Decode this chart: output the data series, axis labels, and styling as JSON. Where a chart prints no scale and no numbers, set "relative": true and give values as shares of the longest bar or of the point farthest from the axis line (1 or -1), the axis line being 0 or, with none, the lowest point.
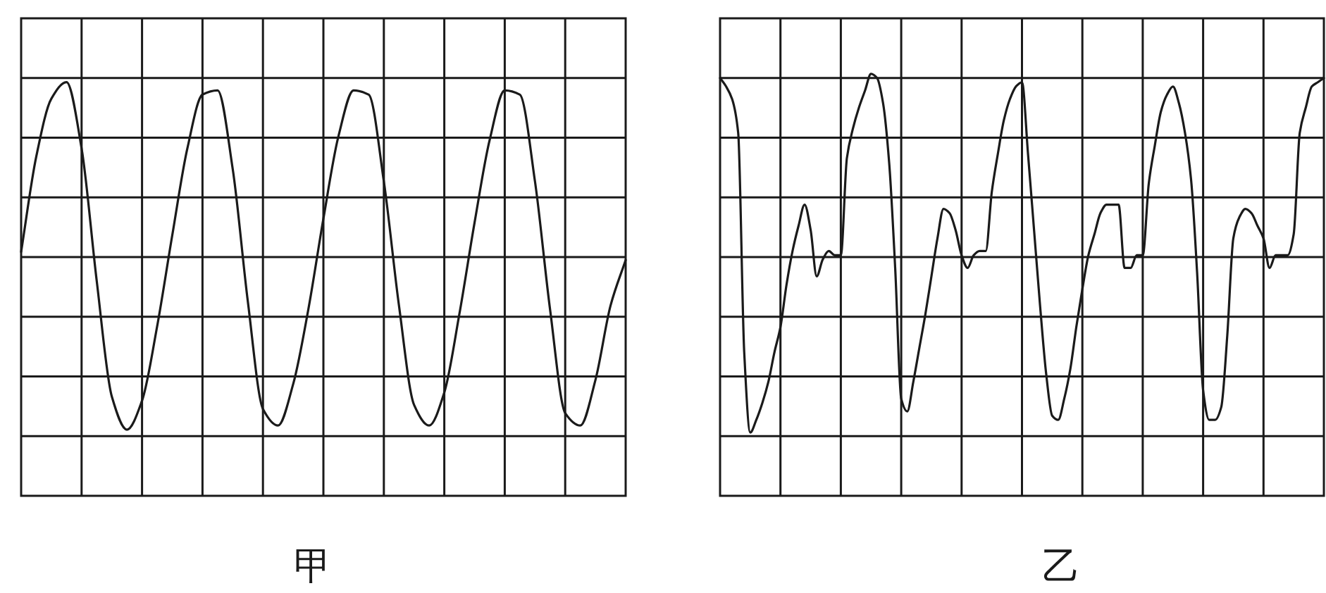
{
  "chart_data": [
    {
      "type": "line",
      "relative": true,
      "grid": true,
      "xlabel": "甲",
      "categories": [
        null,
        null,
        null,
        null,
        null,
        null,
        null,
        null,
        null,
        null,
        null,
        null,
        null,
        null,
        null,
        null,
        null,
        null,
        null,
        null,
        null,
        null,
        null,
        null,
        null,
        null,
        null,
        null,
        null,
        null,
        null,
        null,
        null,
        null,
        null,
        null,
        null,
        null,
        null,
        null,
        null
      ],
      "series": [
        {
          "color": "#1a1a1a",
          "values": [
            0.59,
            0.82,
            0.96,
            1.0,
            0.84,
            0.52,
            0.24,
            0.16,
            0.23,
            0.41,
            0.63,
            0.84,
            0.97,
            0.98,
            0.79,
            0.47,
            0.21,
            0.17,
            0.27,
            0.45,
            0.67,
            0.87,
            0.98,
            0.97,
            0.76,
            0.46,
            0.22,
            0.17,
            0.25,
            0.44,
            0.66,
            0.86,
            0.98,
            0.97,
            0.76,
            0.45,
            0.2,
            0.17,
            0.28,
            0.46,
            0.57
          ]
        }
      ]
    },
    {
      "type": "line",
      "relative": true,
      "grid": true,
      "xlabel": "乙",
      "categories": [
        null,
        null,
        null,
        null,
        null,
        null,
        null,
        null,
        null,
        null,
        null,
        null,
        null,
        null,
        null,
        null,
        null,
        null,
        null,
        null,
        null,
        null,
        null,
        null,
        null,
        null,
        null,
        null,
        null,
        null,
        null,
        null,
        null,
        null,
        null,
        null,
        null,
        null,
        null,
        null,
        null,
        null,
        null,
        null,
        null,
        null,
        null,
        null,
        null,
        null,
        null,
        null,
        null,
        null,
        null,
        null,
        null,
        null,
        null,
        null,
        null,
        null,
        null,
        null,
        null,
        null,
        null,
        null,
        null,
        null,
        null,
        null,
        null,
        null,
        null,
        null,
        null,
        null,
        null,
        null,
        null,
        null,
        null,
        null,
        null,
        null,
        null,
        null,
        null,
        null,
        null,
        null,
        null,
        null,
        null,
        null,
        null,
        null,
        null,
        null,
        null
      ],
      "series": [
        {
          "color": "#1a1a1a",
          "values": [
            0.99,
            0.97,
            0.94,
            0.86,
            0.34,
            0.15,
            0.18,
            0.22,
            0.27,
            0.34,
            0.4,
            0.5,
            0.58,
            0.64,
            0.69,
            0.63,
            0.52,
            0.56,
            0.58,
            0.57,
            0.57,
            0.8,
            0.87,
            0.92,
            0.96,
            1.0,
            0.99,
            0.93,
            0.79,
            0.54,
            0.23,
            0.2,
            0.27,
            0.35,
            0.43,
            0.52,
            0.61,
            0.68,
            0.67,
            0.63,
            0.57,
            0.54,
            0.57,
            0.58,
            0.58,
            0.72,
            0.81,
            0.89,
            0.94,
            0.97,
            0.98,
            0.81,
            0.63,
            0.45,
            0.29,
            0.19,
            0.18,
            0.23,
            0.3,
            0.4,
            0.49,
            0.57,
            0.62,
            0.67,
            0.69,
            0.69,
            0.69,
            0.54,
            0.54,
            0.57,
            0.57,
            0.74,
            0.83,
            0.91,
            0.95,
            0.97,
            0.93,
            0.86,
            0.75,
            0.53,
            0.25,
            0.18,
            0.18,
            0.21,
            0.38,
            0.61,
            0.66,
            0.68,
            0.67,
            0.64,
            0.61,
            0.54,
            0.57,
            0.57,
            0.57,
            0.62,
            0.86,
            0.92,
            0.97,
            0.98,
            0.99
          ]
        }
      ]
    }
  ]
}
